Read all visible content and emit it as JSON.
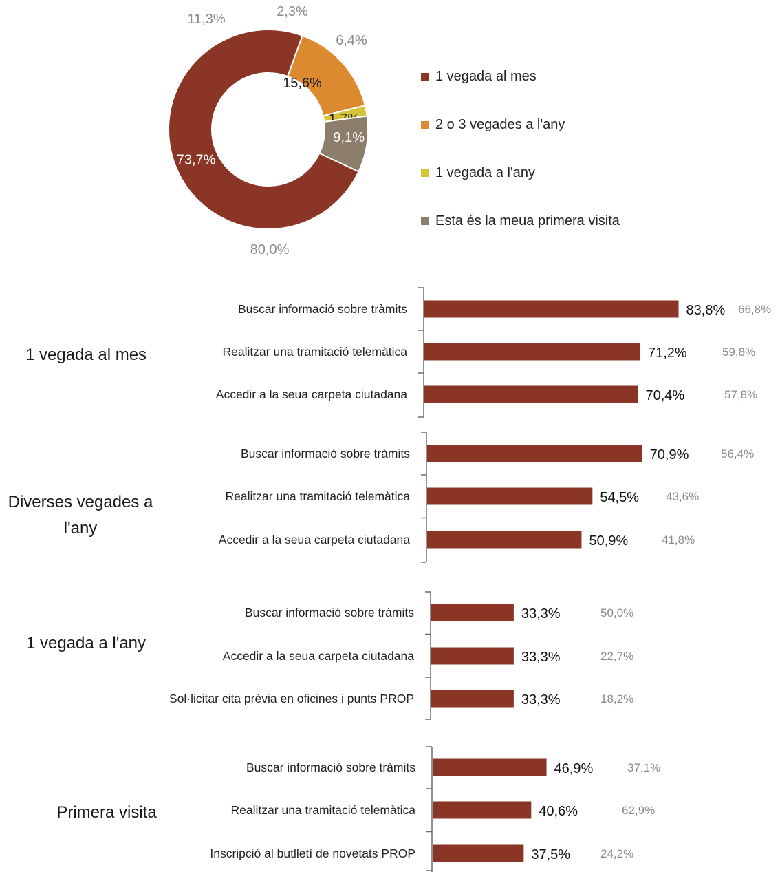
{
  "colors": {
    "monthly": "#8B3526",
    "two_three": "#DB8A30",
    "yearly": "#D4C33B",
    "first": "#8C7E6A",
    "bar": "#8B3526",
    "compare_text": "#8a8a8a"
  },
  "chart_data": [
    {
      "type": "pie",
      "variant": "donut",
      "slices": [
        {
          "label": "1 vegada al mes",
          "value": 73.7,
          "comparison": 80.0,
          "color": "#8B3526",
          "label_color": "#ffffff"
        },
        {
          "label": "2 o 3 vegades a l'any",
          "value": 15.6,
          "comparison": 11.3,
          "color": "#DB8A30",
          "label_color": "#1a1a1a"
        },
        {
          "label": "1 vegada a l'any",
          "value": 1.7,
          "comparison": 2.3,
          "color": "#D4C33B",
          "label_color": "#1a1a1a"
        },
        {
          "label": "Esta és la meua primera visita",
          "value": 9.1,
          "comparison": 6.4,
          "color": "#8C7E6A",
          "label_color": "#ffffff"
        }
      ],
      "legend_position": "right",
      "value_labels": [
        "73,7%",
        "15,6%",
        "1,7%",
        "9,1%"
      ],
      "comparison_labels": [
        "80,0%",
        "11,3%",
        "2,3%",
        "6,4%"
      ]
    },
    {
      "type": "bar",
      "orientation": "horizontal",
      "groups": [
        {
          "title": "1 vegada al mes",
          "categories": [
            "Buscar informació sobre tràmits",
            "Realitzar una tramitació telemàtica",
            "Accedir a la seua carpeta ciutadana"
          ],
          "values": [
            83.8,
            71.2,
            70.4
          ],
          "value_labels": [
            "83,8%",
            "71,2%",
            "70,4%"
          ],
          "comparison_labels": [
            "66,8%",
            "59,8%",
            "57,8%"
          ]
        },
        {
          "title": "Diverses vegades a l'any",
          "categories": [
            "Buscar informació sobre tràmits",
            "Realitzar una tramitació telemàtica",
            "Accedir a la seua carpeta ciutadana"
          ],
          "values": [
            70.9,
            54.5,
            50.9
          ],
          "value_labels": [
            "70,9%",
            "54,5%",
            "50,9%"
          ],
          "comparison_labels": [
            "56,4%",
            "43,6%",
            "41,8%"
          ]
        },
        {
          "title": "1 vegada a l'any",
          "categories": [
            "Buscar informació sobre tràmits",
            "Accedir a la seua carpeta ciutadana",
            "Sol·licitar cita prèvia en oficines i punts PROP"
          ],
          "values": [
            33.3,
            33.3,
            33.3
          ],
          "value_labels": [
            "33,3%",
            "33,3%",
            "33,3%"
          ],
          "comparison_labels": [
            "50,0%",
            "22,7%",
            "18,2%"
          ]
        },
        {
          "title": "Primera visita",
          "categories": [
            "Buscar informació sobre tràmits",
            "Realitzar una tramitació telemàtica",
            "Inscripció al butlletí de novetats PROP"
          ],
          "values": [
            46.9,
            40.6,
            37.5
          ],
          "value_labels": [
            "46,9%",
            "40,6%",
            "37,5%"
          ],
          "comparison_labels": [
            "37,1%",
            "62,9%",
            "24,2%"
          ]
        }
      ]
    }
  ]
}
